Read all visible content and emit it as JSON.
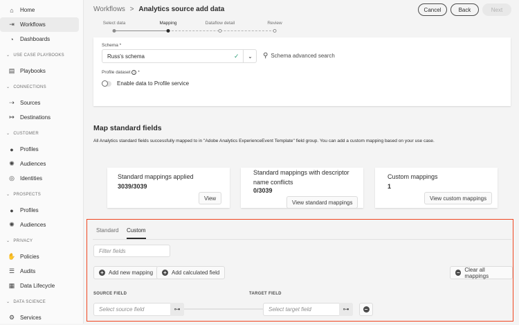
{
  "sidebar": {
    "items": [
      {
        "type": "item",
        "label": "Home",
        "icon": "home-icon"
      },
      {
        "type": "item",
        "label": "Workflows",
        "icon": "workflows-icon",
        "selected": true
      },
      {
        "type": "item",
        "label": "Dashboards",
        "icon": "dashboard-icon"
      },
      {
        "type": "section",
        "label": "USE CASE PLAYBOOKS"
      },
      {
        "type": "item",
        "label": "Playbooks",
        "icon": "playbooks-icon"
      },
      {
        "type": "section",
        "label": "CONNECTIONS"
      },
      {
        "type": "item",
        "label": "Sources",
        "icon": "sources-icon"
      },
      {
        "type": "item",
        "label": "Destinations",
        "icon": "destinations-icon"
      },
      {
        "type": "section",
        "label": "CUSTOMER"
      },
      {
        "type": "item",
        "label": "Profiles",
        "icon": "profile-icon"
      },
      {
        "type": "item",
        "label": "Audiences",
        "icon": "audiences-icon"
      },
      {
        "type": "item",
        "label": "Identities",
        "icon": "fingerprint-icon"
      },
      {
        "type": "section",
        "label": "PROSPECTS"
      },
      {
        "type": "item",
        "label": "Profiles",
        "icon": "profile-icon"
      },
      {
        "type": "item",
        "label": "Audiences",
        "icon": "audiences-icon"
      },
      {
        "type": "section",
        "label": "PRIVACY"
      },
      {
        "type": "item",
        "label": "Policies",
        "icon": "hand-icon"
      },
      {
        "type": "item",
        "label": "Audits",
        "icon": "audits-icon"
      },
      {
        "type": "item",
        "label": "Data Lifecycle",
        "icon": "data-lifecycle-icon"
      },
      {
        "type": "section",
        "label": "DATA SCIENCE"
      },
      {
        "type": "item",
        "label": "Services",
        "icon": "services-icon"
      }
    ]
  },
  "header": {
    "breadcrumb_parent": "Workflows",
    "breadcrumb_sep": ">",
    "title": "Analytics source add data",
    "cancel": "Cancel",
    "back": "Back",
    "next": "Next"
  },
  "steps": [
    {
      "label": "Select data",
      "state": "done"
    },
    {
      "label": "Mapping",
      "state": "current"
    },
    {
      "label": "Dataflow detail",
      "state": "todo"
    },
    {
      "label": "Review",
      "state": "todo"
    }
  ],
  "schema": {
    "label": "Schema",
    "required": "*",
    "value": "Russ's schema",
    "advanced_search": "Schema advanced search",
    "profile_label": "Profile dataset",
    "profile_toggle_label": "Enable data to Profile service",
    "profile_enabled": false
  },
  "map": {
    "title": "Map standard fields",
    "description": "All Analytics standard fields successfully mapped to in \"Adobe Analytics ExperienceEvent Template\" field group. You can add a custom mapping based on your use case."
  },
  "stats": [
    {
      "title": "Standard mappings applied",
      "value": "3039/3039",
      "button": "View"
    },
    {
      "title": "Standard mappings with descriptor name conflicts",
      "value": "0/3039",
      "button": "View standard mappings"
    },
    {
      "title": "Custom mappings",
      "value": "1",
      "button": "View custom mappings"
    }
  ],
  "custom": {
    "tabs": [
      "Standard",
      "Custom"
    ],
    "active_tab": "Custom",
    "filter_placeholder": "Filter fields",
    "add_mapping": "Add new mapping",
    "add_calculated": "Add calculated field",
    "clear_all": "Clear all mappings",
    "source_header": "SOURCE FIELD",
    "target_header": "TARGET FIELD",
    "source_placeholder": "Select source field",
    "target_placeholder": "Select target field"
  },
  "colors": {
    "highlight": "#f0441f",
    "check": "#2d9d78"
  }
}
